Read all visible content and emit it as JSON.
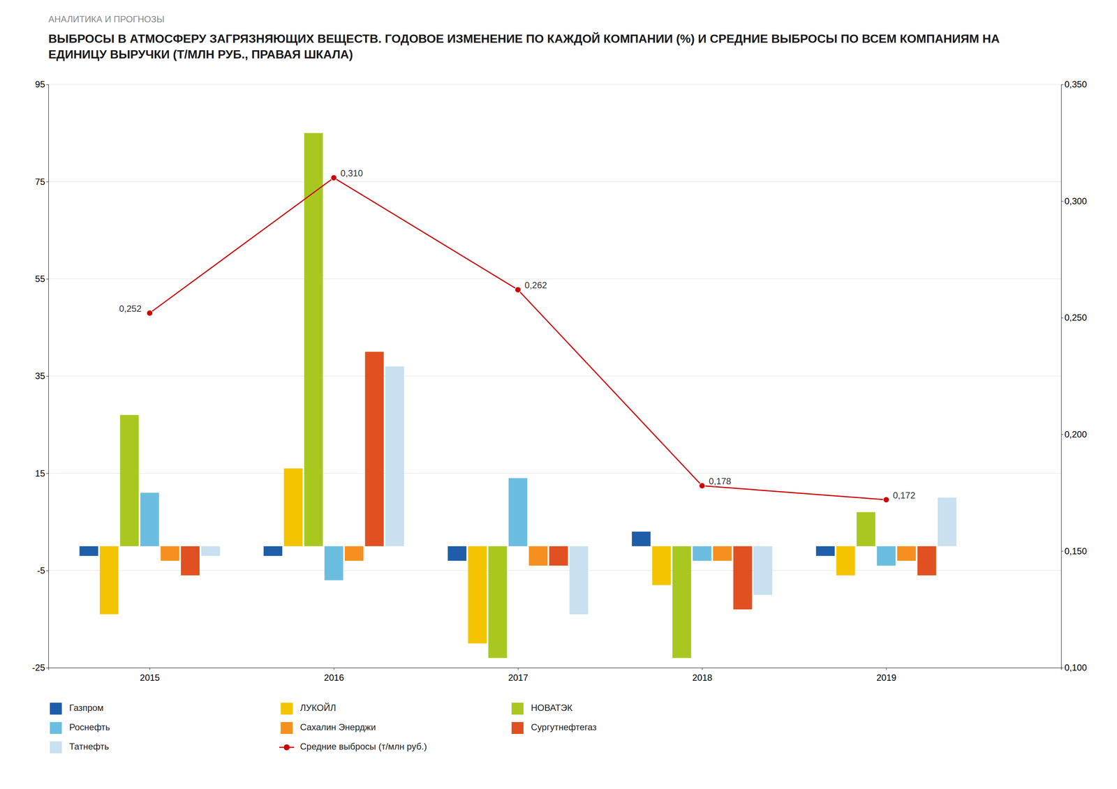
{
  "chart_data": {
    "type": "bar",
    "title": "ВЫБРОСЫ В АТМОСФЕРУ ЗАГРЯЗНЯЮЩИХ ВЕЩЕСТВ. ГОДОВОЕ ИЗМЕНЕНИЕ ПО КАЖДОЙ КОМПАНИИ (%) И СРЕДНИЕ ВЫБРОСЫ ПО ВСЕМ КОМПАНИЯМ НА ЕДИНИЦУ ВЫРУЧКИ (Т/МЛН РУБ., ПРАВАЯ ШКАЛА)",
    "subtitle": "АНАЛИТИКА И ПРОГНОЗЫ",
    "x": [
      2015,
      2016,
      2017,
      2018,
      2019
    ],
    "xlim": [
      2014.45,
      2019.95
    ],
    "xticks": [
      2015,
      2016,
      2017,
      2018,
      2019
    ],
    "ylim": [
      -25,
      95
    ],
    "yticks": [
      -25,
      -5,
      15,
      35,
      55,
      75,
      95
    ],
    "y2lim": [
      0.1,
      0.35
    ],
    "y2ticks": [
      {
        "value": 0.1,
        "label": "0,100"
      },
      {
        "value": 0.15,
        "label": "0,150"
      },
      {
        "value": 0.2,
        "label": "0,200"
      },
      {
        "value": 0.25,
        "label": "0,250"
      },
      {
        "value": 0.3,
        "label": "0,300"
      },
      {
        "value": 0.35,
        "label": "0,350"
      }
    ],
    "grid": true,
    "legend": "bottom",
    "series": [
      {
        "name": "Газпром",
        "color": "#1e5ea8",
        "values": [
          -2,
          -2,
          -3,
          3,
          -2
        ]
      },
      {
        "name": "ЛУКОЙЛ",
        "color": "#f5c400",
        "values": [
          -14,
          16,
          -20,
          -8,
          -6
        ]
      },
      {
        "name": "НОВАТЭК",
        "color": "#a8c820",
        "values": [
          27,
          85,
          -23,
          -23,
          7
        ]
      },
      {
        "name": "Роснефть",
        "color": "#6bbde0",
        "values": [
          11,
          -7,
          14,
          -3,
          -4
        ]
      },
      {
        "name": "Сахалин Энерджи",
        "color": "#f59020",
        "values": [
          -3,
          -3,
          -4,
          -3,
          -3
        ]
      },
      {
        "name": "Сургутнефтегаз",
        "color": "#e05020",
        "values": [
          -6,
          40,
          -4,
          -13,
          -6
        ]
      },
      {
        "name": "Татнефть",
        "color": "#c8e0f0",
        "values": [
          -2,
          37,
          -14,
          -10,
          10
        ]
      },
      {
        "name": "Средние выбросы (т/млн руб.)",
        "type": "line",
        "axis": "y2",
        "color": "#cc0000",
        "marker": "circle",
        "data_labels": true,
        "values": [
          0.252,
          0.31,
          0.262,
          0.178,
          0.172
        ],
        "value_labels": [
          "0,252",
          "0,310",
          "0,262",
          "0,178",
          "0,172"
        ]
      }
    ]
  }
}
